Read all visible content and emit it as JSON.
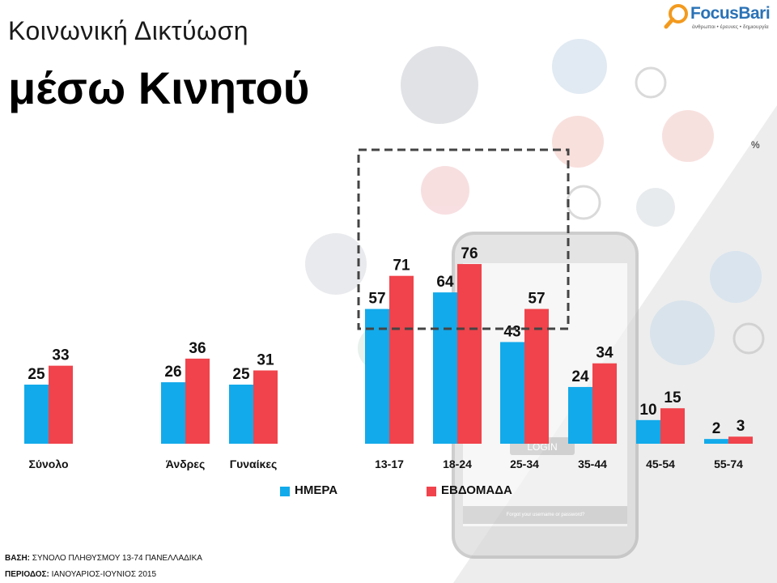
{
  "title": {
    "line1": "Κοινωνική Δικτύωση",
    "line2": "μέσω Κινητού"
  },
  "logo": {
    "name": "FocusBari",
    "tagline": "άνθρωποι • έρευνες • δημιουργία"
  },
  "unit_label": "%",
  "legend": {
    "day": "ΗΜΕΡΑ",
    "week": "ΕΒΔΟΜΑΔΑ"
  },
  "footer": {
    "base_label": "ΒΑΣΗ:",
    "base_value": "ΣΥΝΟΛΟ ΠΛΗΘΥΣΜΟΥ 13-74 ΠΑΝΕΛΛΑΔΙΚΑ",
    "period_label": "ΠΕΡΙΟΔΟΣ:",
    "period_value": "ΙΑΝΟΥΑΡΙΟΣ-ΙΟΥΝΙΟΣ 2015"
  },
  "phone_texts": {
    "login": "LOGIN",
    "forgot": "Forgot your username or password?"
  },
  "colors": {
    "day": "#12aaea",
    "week": "#f0434b",
    "logo_blue": "#2a72b6",
    "logo_orange": "#f39a1e"
  },
  "chart_data": {
    "type": "bar",
    "categories": [
      "Σύνολο",
      "Άνδρες",
      "Γυναίκες",
      "13-17",
      "18-24",
      "25-34",
      "35-44",
      "45-54",
      "55-74"
    ],
    "series": [
      {
        "name": "ΗΜΕΡΑ",
        "values": [
          25,
          26,
          25,
          57,
          64,
          43,
          24,
          10,
          2
        ]
      },
      {
        "name": "ΕΒΔΟΜΑΔΑ",
        "values": [
          33,
          36,
          31,
          71,
          76,
          57,
          34,
          15,
          3
        ]
      }
    ],
    "highlighted_categories": [
      "13-17",
      "18-24",
      "25-34"
    ],
    "ylim": [
      0,
      100
    ],
    "grid": false,
    "legend_position": "bottom"
  }
}
